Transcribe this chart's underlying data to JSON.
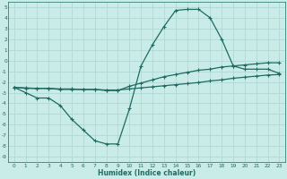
{
  "xlabel": "Humidex (Indice chaleur)",
  "background_color": "#c9ece8",
  "grid_color": "#b0d8d4",
  "line_color": "#1e6b62",
  "x_values": [
    0,
    1,
    2,
    3,
    4,
    5,
    6,
    7,
    8,
    9,
    10,
    11,
    12,
    13,
    14,
    15,
    16,
    17,
    18,
    19,
    20,
    21,
    22,
    23
  ],
  "line1_y": [
    -2.5,
    -3.0,
    -3.5,
    -3.5,
    -4.2,
    -5.5,
    -6.5,
    -7.5,
    -7.8,
    -7.8,
    -4.5,
    -0.5,
    1.5,
    3.2,
    4.7,
    4.8,
    4.8,
    4.0,
    2.0,
    -0.5,
    -0.8,
    -0.8,
    -0.8,
    -1.2
  ],
  "line2_y": [
    -2.5,
    -2.6,
    -2.6,
    -2.6,
    -2.7,
    -2.7,
    -2.7,
    -2.7,
    -2.8,
    -2.8,
    -2.4,
    -2.1,
    -1.8,
    -1.5,
    -1.3,
    -1.1,
    -0.9,
    -0.8,
    -0.6,
    -0.5,
    -0.4,
    -0.3,
    -0.2,
    -0.2
  ],
  "line3_y": [
    -2.5,
    -2.55,
    -2.6,
    -2.6,
    -2.65,
    -2.65,
    -2.7,
    -2.7,
    -2.75,
    -2.75,
    -2.65,
    -2.55,
    -2.45,
    -2.35,
    -2.25,
    -2.15,
    -2.05,
    -1.9,
    -1.8,
    -1.65,
    -1.55,
    -1.45,
    -1.35,
    -1.3
  ],
  "xlim": [
    -0.5,
    23.5
  ],
  "ylim": [
    -9.5,
    5.5
  ],
  "yticks": [
    5,
    4,
    3,
    2,
    1,
    0,
    -1,
    -2,
    -3,
    -4,
    -5,
    -6,
    -7,
    -8,
    -9
  ],
  "xticks": [
    0,
    1,
    2,
    3,
    4,
    5,
    6,
    7,
    8,
    9,
    10,
    11,
    12,
    13,
    14,
    15,
    16,
    17,
    18,
    19,
    20,
    21,
    22,
    23
  ]
}
